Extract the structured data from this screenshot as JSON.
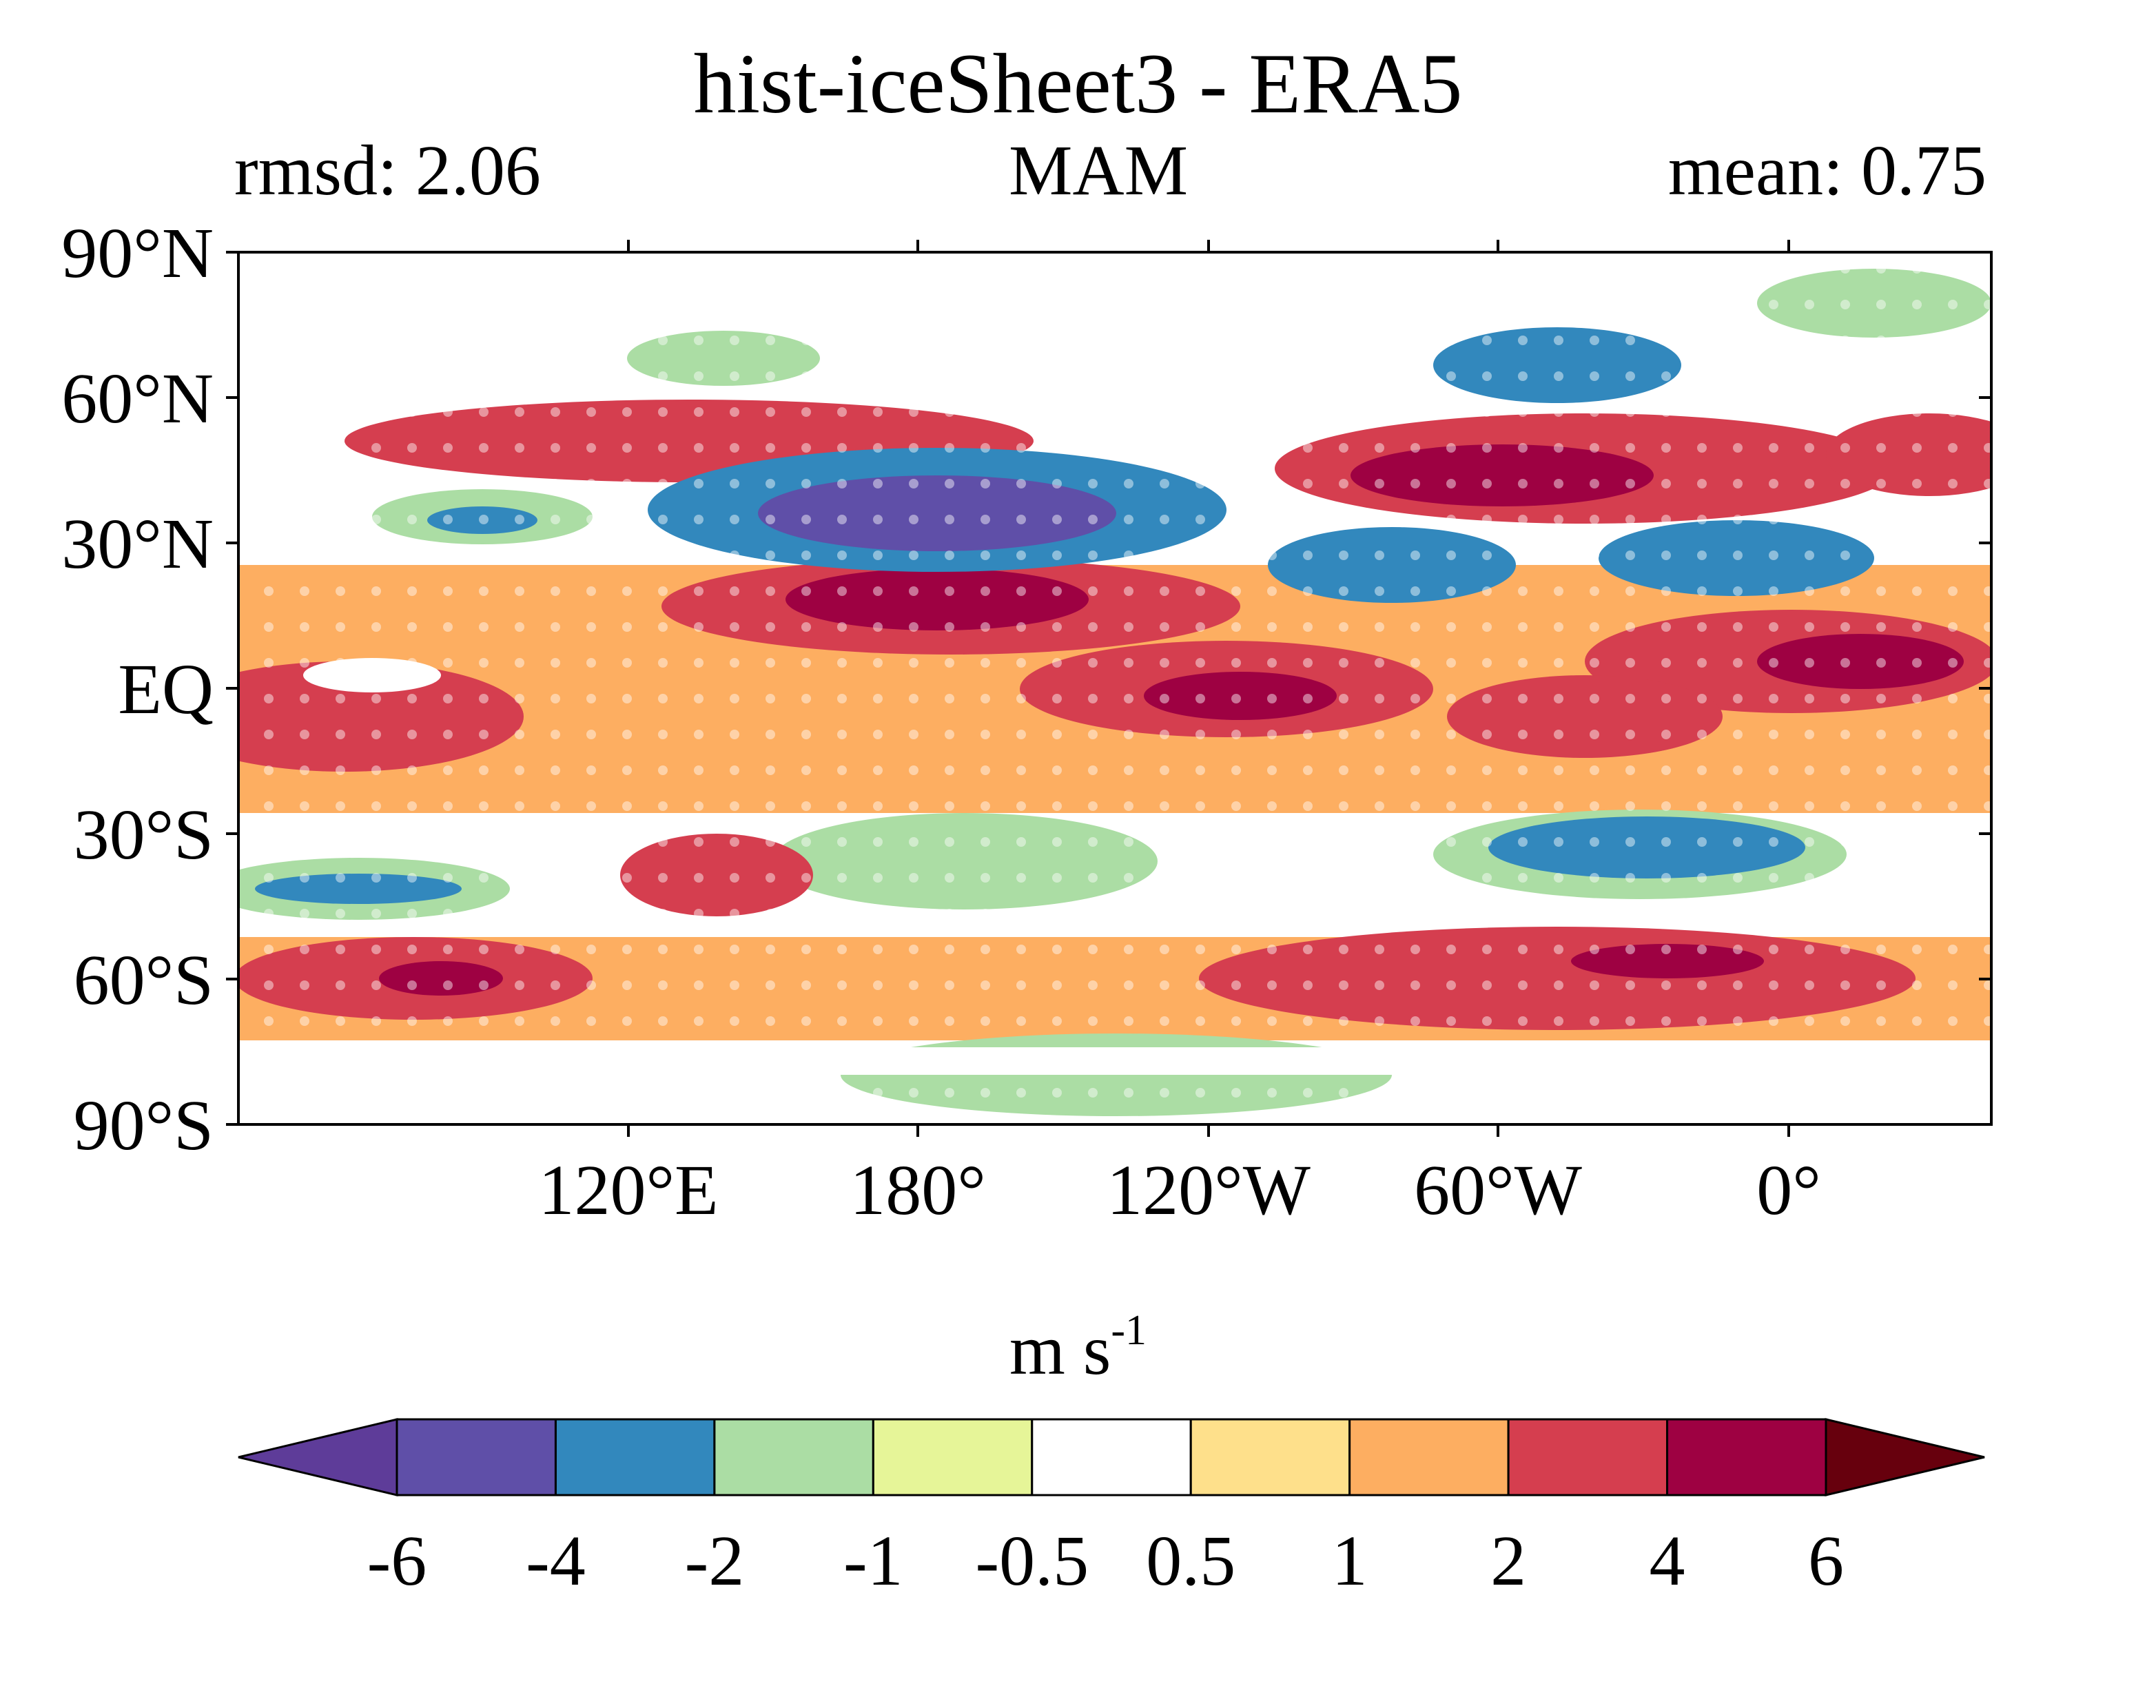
{
  "title": "hist-iceSheet3 - ERA5",
  "left_string": "rmsd: 2.06",
  "center_string": "MAM",
  "right_string": "mean: 0.75",
  "units_base": "m s",
  "units_exp": "-1",
  "lat_ticks": [
    "90°N",
    "60°N",
    "30°N",
    "EQ",
    "30°S",
    "60°S",
    "90°S"
  ],
  "lon_ticks": [
    "120°E",
    "180°",
    "120°W",
    "60°W",
    "0°"
  ],
  "colorbar": {
    "labels": [
      "-6",
      "-4",
      "-2",
      "-1",
      "-0.5",
      "0.5",
      "1",
      "2",
      "4",
      "6"
    ],
    "colors": [
      "#5e3c99",
      "#5f4fa8",
      "#3288bd",
      "#abdda4",
      "#e6f598",
      "#ffffff",
      "#fee08b",
      "#fdae61",
      "#d53e4f",
      "#9e0142",
      "#67000d"
    ]
  }
}
